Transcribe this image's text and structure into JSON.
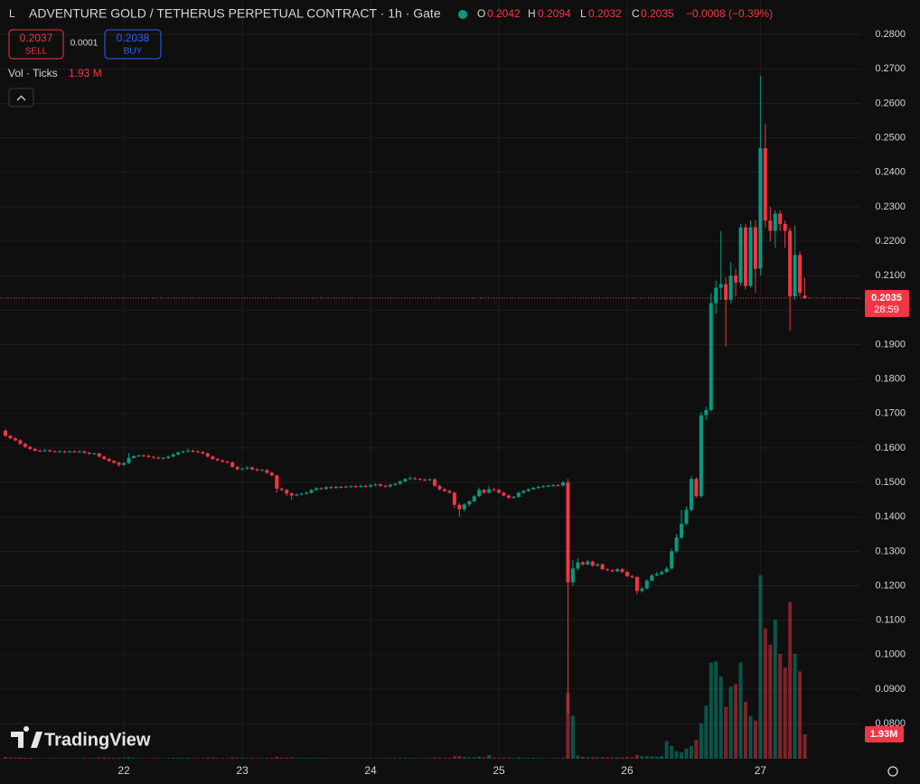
{
  "header": {
    "symbol_icon": "L",
    "title": "ADVENTURE GOLD / TETHERUS PERPETUAL CONTRACT · 1h · Gate",
    "o_label": "O",
    "h_label": "H",
    "l_label": "L",
    "c_label": "C",
    "change": "−0.0008 (−0.39%)",
    "sell_price": 0.2037,
    "sell_label": "SELL",
    "spread": 0.0001,
    "buy_price": 0.2038,
    "buy_label": "BUY",
    "volume_title": "Vol · Ticks",
    "volume_value_label": "1.93 M",
    "countdown": "28:59",
    "logo_text": "TradingView"
  },
  "chart_data": {
    "type": "candlestick",
    "up_color": "#089981",
    "down_color": "#f23645",
    "grid": true,
    "last_price_line": true,
    "ylim": [
      0.0698,
      0.29
    ],
    "vlim": [
      0,
      60
    ],
    "yticks": [
      {
        "value": 0.08,
        "label": "0.0800"
      },
      {
        "value": 0.09,
        "label": "0.0900"
      },
      {
        "value": 0.1,
        "label": "0.1000"
      },
      {
        "value": 0.11,
        "label": "0.1100"
      },
      {
        "value": 0.12,
        "label": "0.1200"
      },
      {
        "value": 0.13,
        "label": "0.1300"
      },
      {
        "value": 0.14,
        "label": "0.1400"
      },
      {
        "value": 0.15,
        "label": "0.1500"
      },
      {
        "value": 0.16,
        "label": "0.1600"
      },
      {
        "value": 0.17,
        "label": "0.1700"
      },
      {
        "value": 0.18,
        "label": "0.1800"
      },
      {
        "value": 0.19,
        "label": "0.1900"
      },
      {
        "value": 0.2,
        "label": "0.2000"
      },
      {
        "value": 0.21,
        "label": "0.2100"
      },
      {
        "value": 0.22,
        "label": "0.2200"
      },
      {
        "value": 0.23,
        "label": "0.2300"
      },
      {
        "value": 0.24,
        "label": "0.2400"
      },
      {
        "value": 0.25,
        "label": "0.2500"
      },
      {
        "value": 0.26,
        "label": "0.2600"
      },
      {
        "value": 0.27,
        "label": "0.2700"
      },
      {
        "value": 0.28,
        "label": "0.2800"
      }
    ],
    "xticks": [
      {
        "value": 24,
        "label": "22"
      },
      {
        "value": 48,
        "label": "23"
      },
      {
        "value": 74,
        "label": "24"
      },
      {
        "value": 100,
        "label": "25"
      },
      {
        "value": 126,
        "label": "26"
      },
      {
        "value": 153,
        "label": "27"
      }
    ],
    "volume_label": "1.93M",
    "ohlc": [
      [
        0.165,
        0.1654,
        0.1632,
        0.1635
      ],
      [
        0.1635,
        0.1638,
        0.1625,
        0.1628
      ],
      [
        0.1628,
        0.1631,
        0.1619,
        0.1622
      ],
      [
        0.1622,
        0.1625,
        0.1609,
        0.1612
      ],
      [
        0.1612,
        0.1615,
        0.16,
        0.1603
      ],
      [
        0.1603,
        0.1606,
        0.1594,
        0.1597
      ],
      [
        0.1597,
        0.16,
        0.1589,
        0.1592
      ],
      [
        0.1592,
        0.1595,
        0.1588,
        0.1591
      ],
      [
        0.1591,
        0.1597,
        0.1588,
        0.1593
      ],
      [
        0.1593,
        0.1596,
        0.1587,
        0.159
      ],
      [
        0.159,
        0.1593,
        0.1586,
        0.1589
      ],
      [
        0.1589,
        0.1593,
        0.1586,
        0.159
      ],
      [
        0.159,
        0.1593,
        0.1585,
        0.1588
      ],
      [
        0.1588,
        0.1593,
        0.1585,
        0.159
      ],
      [
        0.159,
        0.1593,
        0.1586,
        0.1589
      ],
      [
        0.1589,
        0.1593,
        0.1586,
        0.159
      ],
      [
        0.159,
        0.1593,
        0.1583,
        0.1586
      ],
      [
        0.1586,
        0.1589,
        0.158,
        0.1583
      ],
      [
        0.1583,
        0.1587,
        0.158,
        0.1584
      ],
      [
        0.1584,
        0.1587,
        0.1572,
        0.1575
      ],
      [
        0.1575,
        0.1578,
        0.1565,
        0.1568
      ],
      [
        0.1568,
        0.1571,
        0.1559,
        0.1562
      ],
      [
        0.1562,
        0.1565,
        0.1554,
        0.1557
      ],
      [
        0.1557,
        0.156,
        0.1545,
        0.1551
      ],
      [
        0.1551,
        0.1559,
        0.1548,
        0.1556
      ],
      [
        0.1556,
        0.1585,
        0.1553,
        0.1571
      ],
      [
        0.1571,
        0.1579,
        0.1568,
        0.1576
      ],
      [
        0.1576,
        0.1581,
        0.1573,
        0.1578
      ],
      [
        0.1578,
        0.1581,
        0.1574,
        0.1577
      ],
      [
        0.1577,
        0.158,
        0.1571,
        0.1574
      ],
      [
        0.1574,
        0.1577,
        0.1569,
        0.1572
      ],
      [
        0.1572,
        0.1575,
        0.1567,
        0.157
      ],
      [
        0.157,
        0.1574,
        0.1567,
        0.1571
      ],
      [
        0.1571,
        0.1578,
        0.1568,
        0.1575
      ],
      [
        0.1575,
        0.1584,
        0.1572,
        0.1581
      ],
      [
        0.1581,
        0.159,
        0.1578,
        0.1587
      ],
      [
        0.1587,
        0.1593,
        0.1584,
        0.159
      ],
      [
        0.159,
        0.1598,
        0.1587,
        0.1592
      ],
      [
        0.1592,
        0.1595,
        0.1587,
        0.159
      ],
      [
        0.159,
        0.1593,
        0.1585,
        0.1588
      ],
      [
        0.1588,
        0.1591,
        0.1581,
        0.1584
      ],
      [
        0.1584,
        0.1587,
        0.1572,
        0.1575
      ],
      [
        0.1575,
        0.1578,
        0.1565,
        0.1568
      ],
      [
        0.1568,
        0.1571,
        0.1561,
        0.1564
      ],
      [
        0.1564,
        0.1567,
        0.1557,
        0.156
      ],
      [
        0.156,
        0.1563,
        0.1555,
        0.1558
      ],
      [
        0.1558,
        0.1561,
        0.1542,
        0.1545
      ],
      [
        0.1545,
        0.1548,
        0.1535,
        0.1538
      ],
      [
        0.1538,
        0.1543,
        0.1535,
        0.154
      ],
      [
        0.154,
        0.1546,
        0.1537,
        0.1543
      ],
      [
        0.1543,
        0.1546,
        0.1535,
        0.1538
      ],
      [
        0.1538,
        0.1541,
        0.1532,
        0.1535
      ],
      [
        0.1535,
        0.1539,
        0.1532,
        0.1536
      ],
      [
        0.1536,
        0.1539,
        0.1525,
        0.1528
      ],
      [
        0.1528,
        0.1531,
        0.1517,
        0.152
      ],
      [
        0.152,
        0.1523,
        0.147,
        0.1482
      ],
      [
        0.1482,
        0.1485,
        0.1475,
        0.1478
      ],
      [
        0.1478,
        0.1481,
        0.146,
        0.1468
      ],
      [
        0.1468,
        0.1471,
        0.145,
        0.1462
      ],
      [
        0.1462,
        0.1468,
        0.1459,
        0.1465
      ],
      [
        0.1465,
        0.147,
        0.1462,
        0.1467
      ],
      [
        0.1467,
        0.1473,
        0.1464,
        0.147
      ],
      [
        0.147,
        0.1481,
        0.1467,
        0.1478
      ],
      [
        0.1478,
        0.1486,
        0.1475,
        0.1483
      ],
      [
        0.1483,
        0.1486,
        0.1478,
        0.1481
      ],
      [
        0.1481,
        0.1489,
        0.1478,
        0.1486
      ],
      [
        0.1486,
        0.1489,
        0.1481,
        0.1484
      ],
      [
        0.1484,
        0.149,
        0.1481,
        0.1487
      ],
      [
        0.1487,
        0.149,
        0.1483,
        0.1486
      ],
      [
        0.1486,
        0.1491,
        0.1483,
        0.1488
      ],
      [
        0.1488,
        0.1492,
        0.1485,
        0.1489
      ],
      [
        0.1489,
        0.1492,
        0.1484,
        0.1487
      ],
      [
        0.1487,
        0.1493,
        0.1484,
        0.149
      ],
      [
        0.149,
        0.1493,
        0.1485,
        0.1488
      ],
      [
        0.1488,
        0.1495,
        0.1485,
        0.1492
      ],
      [
        0.1492,
        0.1497,
        0.1489,
        0.1494
      ],
      [
        0.1494,
        0.1497,
        0.1487,
        0.149
      ],
      [
        0.149,
        0.1493,
        0.1485,
        0.1488
      ],
      [
        0.1488,
        0.1496,
        0.1485,
        0.1493
      ],
      [
        0.1493,
        0.1499,
        0.149,
        0.1496
      ],
      [
        0.1496,
        0.1506,
        0.1493,
        0.1503
      ],
      [
        0.1503,
        0.1513,
        0.15,
        0.151
      ],
      [
        0.151,
        0.1518,
        0.1507,
        0.1512
      ],
      [
        0.1512,
        0.1515,
        0.1507,
        0.151
      ],
      [
        0.151,
        0.1513,
        0.1505,
        0.1508
      ],
      [
        0.1508,
        0.1511,
        0.1504,
        0.1507
      ],
      [
        0.1507,
        0.1512,
        0.1504,
        0.1509
      ],
      [
        0.1509,
        0.1512,
        0.1487,
        0.149
      ],
      [
        0.149,
        0.1493,
        0.1477,
        0.148
      ],
      [
        0.148,
        0.1483,
        0.1472,
        0.1475
      ],
      [
        0.1475,
        0.1478,
        0.1467,
        0.147
      ],
      [
        0.147,
        0.1473,
        0.1425,
        0.1435
      ],
      [
        0.1435,
        0.144,
        0.14,
        0.1422
      ],
      [
        0.1422,
        0.144,
        0.1415,
        0.1436
      ],
      [
        0.1436,
        0.1448,
        0.143,
        0.1445
      ],
      [
        0.1445,
        0.1463,
        0.1442,
        0.146
      ],
      [
        0.146,
        0.1485,
        0.1457,
        0.1478
      ],
      [
        0.1478,
        0.1481,
        0.1467,
        0.147
      ],
      [
        0.147,
        0.149,
        0.1467,
        0.148
      ],
      [
        0.148,
        0.1484,
        0.1475,
        0.1478
      ],
      [
        0.1478,
        0.1481,
        0.1467,
        0.147
      ],
      [
        0.147,
        0.1473,
        0.1459,
        0.1462
      ],
      [
        0.1462,
        0.1465,
        0.1452,
        0.1455
      ],
      [
        0.1455,
        0.1461,
        0.1452,
        0.1458
      ],
      [
        0.1458,
        0.1473,
        0.1455,
        0.147
      ],
      [
        0.147,
        0.1478,
        0.1467,
        0.1475
      ],
      [
        0.1475,
        0.1483,
        0.1472,
        0.148
      ],
      [
        0.148,
        0.1487,
        0.1477,
        0.1484
      ],
      [
        0.1484,
        0.149,
        0.1481,
        0.1487
      ],
      [
        0.1487,
        0.1492,
        0.1484,
        0.1489
      ],
      [
        0.1489,
        0.1493,
        0.1486,
        0.149
      ],
      [
        0.149,
        0.1495,
        0.1487,
        0.1492
      ],
      [
        0.1492,
        0.1495,
        0.1488,
        0.1491
      ],
      [
        0.1491,
        0.1503,
        0.1488,
        0.15
      ],
      [
        0.15,
        0.151,
        0.083,
        0.121
      ],
      [
        0.121,
        0.1275,
        0.12,
        0.125
      ],
      [
        0.125,
        0.128,
        0.1245,
        0.1268
      ],
      [
        0.1268,
        0.1272,
        0.1258,
        0.1262
      ],
      [
        0.1262,
        0.1275,
        0.1259,
        0.127
      ],
      [
        0.127,
        0.1273,
        0.1255,
        0.1258
      ],
      [
        0.1258,
        0.1266,
        0.1255,
        0.1262
      ],
      [
        0.1262,
        0.1265,
        0.1245,
        0.1248
      ],
      [
        0.1248,
        0.1251,
        0.1242,
        0.1245
      ],
      [
        0.1245,
        0.1248,
        0.1239,
        0.1242
      ],
      [
        0.1242,
        0.1252,
        0.1239,
        0.1248
      ],
      [
        0.1248,
        0.1251,
        0.1237,
        0.124
      ],
      [
        0.124,
        0.1243,
        0.1225,
        0.1228
      ],
      [
        0.1228,
        0.1231,
        0.1222,
        0.1225
      ],
      [
        0.1225,
        0.1228,
        0.1175,
        0.1185
      ],
      [
        0.1185,
        0.1196,
        0.118,
        0.1192
      ],
      [
        0.1192,
        0.1219,
        0.1189,
        0.1215
      ],
      [
        0.1215,
        0.1235,
        0.1212,
        0.123
      ],
      [
        0.123,
        0.124,
        0.1227,
        0.1234
      ],
      [
        0.1234,
        0.1245,
        0.1231,
        0.124
      ],
      [
        0.124,
        0.1256,
        0.1237,
        0.125
      ],
      [
        0.125,
        0.1308,
        0.1247,
        0.13
      ],
      [
        0.13,
        0.135,
        0.1295,
        0.134
      ],
      [
        0.134,
        0.142,
        0.1335,
        0.138
      ],
      [
        0.138,
        0.143,
        0.1375,
        0.142
      ],
      [
        0.142,
        0.152,
        0.1415,
        0.151
      ],
      [
        0.151,
        0.1515,
        0.1455,
        0.146
      ],
      [
        0.146,
        0.1705,
        0.1455,
        0.1695
      ],
      [
        0.1695,
        0.172,
        0.168,
        0.171
      ],
      [
        0.171,
        0.205,
        0.1705,
        0.202
      ],
      [
        0.202,
        0.2085,
        0.199,
        0.2065
      ],
      [
        0.2065,
        0.223,
        0.203,
        0.2075
      ],
      [
        0.2075,
        0.2095,
        0.1895,
        0.203
      ],
      [
        0.203,
        0.214,
        0.202,
        0.21
      ],
      [
        0.21,
        0.212,
        0.204,
        0.208
      ],
      [
        0.208,
        0.225,
        0.207,
        0.224
      ],
      [
        0.224,
        0.225,
        0.206,
        0.207
      ],
      [
        0.207,
        0.226,
        0.2065,
        0.224
      ],
      [
        0.224,
        0.226,
        0.205,
        0.212
      ],
      [
        0.212,
        0.268,
        0.21,
        0.247
      ],
      [
        0.247,
        0.254,
        0.224,
        0.226
      ],
      [
        0.226,
        0.23,
        0.22,
        0.223
      ],
      [
        0.223,
        0.229,
        0.218,
        0.228
      ],
      [
        0.228,
        0.229,
        0.223,
        0.225
      ],
      [
        0.225,
        0.226,
        0.218,
        0.223
      ],
      [
        0.223,
        0.224,
        0.194,
        0.204
      ],
      [
        0.204,
        0.2245,
        0.203,
        0.216
      ],
      [
        0.216,
        0.217,
        0.204,
        0.205
      ],
      [
        0.2042,
        0.2094,
        0.2032,
        0.2035
      ]
    ],
    "volume": [
      0.12,
      0.1,
      0.08,
      0.09,
      0.07,
      0.06,
      0.05,
      0.04,
      0.05,
      0.04,
      0.05,
      0.04,
      0.05,
      0.04,
      0.04,
      0.05,
      0.06,
      0.05,
      0.05,
      0.08,
      0.09,
      0.07,
      0.06,
      0.08,
      0.07,
      0.12,
      0.07,
      0.05,
      0.04,
      0.05,
      0.04,
      0.05,
      0.04,
      0.06,
      0.07,
      0.08,
      0.06,
      0.07,
      0.05,
      0.04,
      0.06,
      0.09,
      0.08,
      0.06,
      0.05,
      0.04,
      0.1,
      0.08,
      0.06,
      0.05,
      0.06,
      0.05,
      0.04,
      0.06,
      0.07,
      0.15,
      0.08,
      0.09,
      0.1,
      0.06,
      0.05,
      0.05,
      0.07,
      0.06,
      0.05,
      0.05,
      0.04,
      0.05,
      0.04,
      0.04,
      0.04,
      0.04,
      0.05,
      0.04,
      0.05,
      0.05,
      0.04,
      0.04,
      0.05,
      0.05,
      0.07,
      0.08,
      0.06,
      0.05,
      0.04,
      0.04,
      0.05,
      0.09,
      0.08,
      0.06,
      0.06,
      0.18,
      0.22,
      0.14,
      0.1,
      0.12,
      0.16,
      0.1,
      0.3,
      0.08,
      0.07,
      0.09,
      0.08,
      0.06,
      0.1,
      0.07,
      0.06,
      0.06,
      0.05,
      0.05,
      0.05,
      0.05,
      0.05,
      0.08,
      5.2,
      3.4,
      0.25,
      0.15,
      0.12,
      0.12,
      0.1,
      0.12,
      0.1,
      0.09,
      0.1,
      0.1,
      0.12,
      0.1,
      0.3,
      0.2,
      0.22,
      0.18,
      0.16,
      0.2,
      1.4,
      1.0,
      0.6,
      0.5,
      0.8,
      1.0,
      1.5,
      2.8,
      4.2,
      7.6,
      7.7,
      6.5,
      4.1,
      5.7,
      5.9,
      7.6,
      4.5,
      3.4,
      3.0,
      14.5,
      10.3,
      9.0,
      11.0,
      8.3,
      7.2,
      12.4,
      8.3,
      6.9,
      1.93
    ]
  }
}
